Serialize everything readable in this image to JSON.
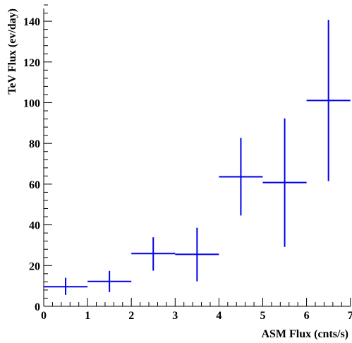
{
  "chart_data": {
    "type": "scatter",
    "title": "",
    "xlabel": "ASM Flux (cnts/s)",
    "ylabel": "TeV Flux (ev/day)",
    "xlim": [
      0,
      7
    ],
    "ylim": [
      0,
      150
    ],
    "x_ticks": [
      0,
      1,
      2,
      3,
      4,
      5,
      6,
      7
    ],
    "y_ticks": [
      0,
      20,
      40,
      60,
      80,
      100,
      120,
      140
    ],
    "x_tick_labels": [
      "0",
      "1",
      "2",
      "3",
      "4",
      "5",
      "6",
      "7"
    ],
    "y_tick_labels": [
      "0",
      "20",
      "40",
      "60",
      "80",
      "100",
      "120",
      "140"
    ],
    "grid": false,
    "series": [
      {
        "color": "#0000e6",
        "points": [
          {
            "x": 0.5,
            "y": 9.6,
            "x_err": 0.5,
            "y_low": 5.6,
            "y_high": 14.0
          },
          {
            "x": 1.5,
            "y": 12.2,
            "x_err": 0.5,
            "y_low": 7.0,
            "y_high": 17.4
          },
          {
            "x": 2.5,
            "y": 25.9,
            "x_err": 0.5,
            "y_low": 17.5,
            "y_high": 33.9
          },
          {
            "x": 3.5,
            "y": 25.5,
            "x_err": 0.5,
            "y_low": 12.3,
            "y_high": 38.6
          },
          {
            "x": 4.5,
            "y": 63.6,
            "x_err": 0.5,
            "y_low": 44.6,
            "y_high": 82.7
          },
          {
            "x": 5.5,
            "y": 60.8,
            "x_err": 0.5,
            "y_low": 29.2,
            "y_high": 92.3
          },
          {
            "x": 6.5,
            "y": 101.1,
            "x_err": 0.5,
            "y_low": 61.5,
            "y_high": 140.7
          }
        ]
      }
    ]
  }
}
